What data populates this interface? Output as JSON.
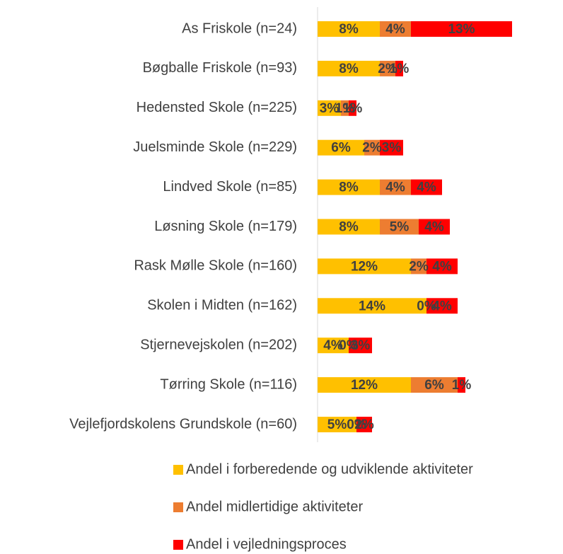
{
  "chart_data": {
    "type": "stacked-bar-horizontal",
    "categories": [
      "As Friskole (n=24)",
      "Bøgballe Friskole (n=93)",
      "Hedensted Skole (n=225)",
      "Juelsminde Skole (n=229)",
      "Lindved Skole (n=85)",
      "Løsning Skole (n=179)",
      "Rask Mølle Skole (n=160)",
      "Skolen i Midten (n=162)",
      "Stjernevejskolen (n=202)",
      "Tørring Skole (n=116)",
      "Vejlefjordskolens Grundskole (n=60)"
    ],
    "series": [
      {
        "name": "Andel i forberedende og udviklende aktiviteter",
        "color": "#FFC000",
        "values": [
          8,
          8,
          3,
          6,
          8,
          8,
          12,
          14,
          4,
          12,
          5
        ],
        "value_labels": [
          "8%",
          "8%",
          "3%",
          "6%",
          "8%",
          "8%",
          "12%",
          "14%",
          "4%",
          "12%",
          "5%"
        ]
      },
      {
        "name": "Andel midlertidige aktiviteter",
        "color": "#ED7D31",
        "values": [
          4,
          2,
          1,
          2,
          4,
          5,
          2,
          0,
          0,
          6,
          0
        ],
        "value_labels": [
          "4%",
          "2%",
          "1%",
          "2%",
          "4%",
          "5%",
          "2%",
          "0%",
          "0%",
          "6%",
          "0%"
        ]
      },
      {
        "name": "Andel i vejledningsproces",
        "color": "#FF0000",
        "values": [
          13,
          1,
          1,
          3,
          4,
          4,
          4,
          4,
          3,
          1,
          2
        ],
        "value_labels": [
          "13%",
          "1%",
          "1%",
          "3%",
          "4%",
          "4%",
          "4%",
          "4%",
          "3%",
          "1%",
          "2%"
        ]
      }
    ],
    "xlim": [
      0,
      30
    ]
  }
}
